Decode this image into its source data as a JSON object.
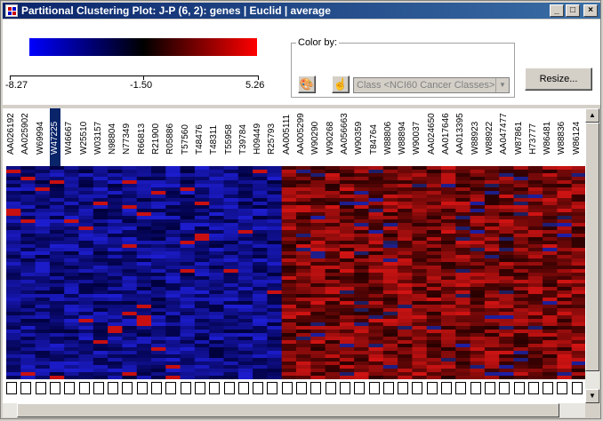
{
  "window": {
    "title": "Partitional Clustering Plot: J-P (6, 2): genes  | Euclid | average",
    "minimize_glyph": "_",
    "maximize_glyph": "□",
    "close_glyph": "×"
  },
  "colorbar": {
    "min_label": "-8.27",
    "mid_label": "-1.50",
    "max_label": "5.26",
    "min": -8.27,
    "mid": -1.5,
    "max": 5.26,
    "colors": {
      "low": "#0000ff",
      "mid": "#000000",
      "high": "#ff0000"
    }
  },
  "color_by": {
    "label": "Color by:",
    "palette_icon": "palette-icon",
    "cursor_icon": "cursor-hand-icon",
    "select_value": "Class <NCI60 Cancer Classes>"
  },
  "resize_label": "Resize...",
  "columns": [
    "AA026192",
    "AA025902",
    "W69994",
    "W47225",
    "W46667",
    "W25510",
    "W03157",
    "N98804",
    "N77349",
    "R66813",
    "R21900",
    "R05886",
    "T57560",
    "T48476",
    "T48311",
    "T55958",
    "T39784",
    "H09449",
    "R25793",
    "AA005111",
    "AA005299",
    "W90290",
    "W90268",
    "AA056663",
    "W90359",
    "T84764",
    "W88806",
    "W88894",
    "W90037",
    "AA024650",
    "AA017646",
    "AA013395",
    "W88923",
    "W88922",
    "AA047477",
    "W87861",
    "H73777",
    "W86481",
    "W88836",
    "W86124"
  ],
  "selected_column": "W47225",
  "scroll_arrows": {
    "up": "▲",
    "down": "▼"
  }
}
